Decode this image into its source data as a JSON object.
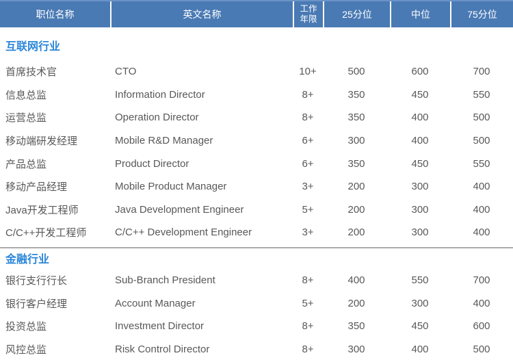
{
  "colors": {
    "page-bg": "#FFFFFF",
    "header-bg": "#4A7AB4",
    "header-top-edge": "#6B93C6",
    "header-text": "#FFFFFF",
    "header-divider": "#FFFFFF",
    "section-title": "#2B86D9",
    "row-text": "#58585A",
    "divider": "#ABABAB"
  },
  "table": {
    "columns": [
      {
        "id": "position",
        "label": "职位名称"
      },
      {
        "id": "english",
        "label": "英文名称"
      },
      {
        "id": "years",
        "label": "工作年限",
        "lines": [
          "工作",
          "年限"
        ]
      },
      {
        "id": "p25",
        "label": "25分位"
      },
      {
        "id": "median",
        "label": "中位"
      },
      {
        "id": "p75",
        "label": "75分位"
      }
    ],
    "sections": [
      {
        "title": "互联网行业",
        "rows": [
          {
            "position": "首席技术官",
            "english": "CTO",
            "years": "10+",
            "p25": "500",
            "median": "600",
            "p75": "700"
          },
          {
            "position": "信息总监",
            "english": "Information Director",
            "years": "8+",
            "p25": "350",
            "median": "450",
            "p75": "550"
          },
          {
            "position": "运营总监",
            "english": "Operation Director",
            "years": "8+",
            "p25": "350",
            "median": "400",
            "p75": "500"
          },
          {
            "position": "移动端研发经理",
            "english": "Mobile R&D Manager",
            "years": "6+",
            "p25": "300",
            "median": "400",
            "p75": "500"
          },
          {
            "position": "产品总监",
            "english": "Product Director",
            "years": "6+",
            "p25": "350",
            "median": "450",
            "p75": "550"
          },
          {
            "position": "移动产品经理",
            "english": "Mobile Product Manager",
            "years": "3+",
            "p25": "200",
            "median": "300",
            "p75": "400"
          },
          {
            "position": "Java开发工程师",
            "english": "Java Development Engineer",
            "years": "5+",
            "p25": "200",
            "median": "300",
            "p75": "400"
          },
          {
            "position": "C/C++开发工程师",
            "english": "C/C++ Development Engineer",
            "years": "3+",
            "p25": "200",
            "median": "300",
            "p75": "400"
          }
        ]
      },
      {
        "title": "金融行业",
        "rows": [
          {
            "position": "银行支行行长",
            "english": "Sub-Branch President",
            "years": "8+",
            "p25": "400",
            "median": "550",
            "p75": "700"
          },
          {
            "position": "银行客户经理",
            "english": "Account Manager",
            "years": "5+",
            "p25": "200",
            "median": "300",
            "p75": "400"
          },
          {
            "position": "投资总监",
            "english": "Investment Director",
            "years": "8+",
            "p25": "350",
            "median": "450",
            "p75": "600"
          },
          {
            "position": "风控总监",
            "english": "Risk Control Director",
            "years": "8+",
            "p25": "300",
            "median": "400",
            "p75": "500"
          }
        ]
      }
    ]
  }
}
